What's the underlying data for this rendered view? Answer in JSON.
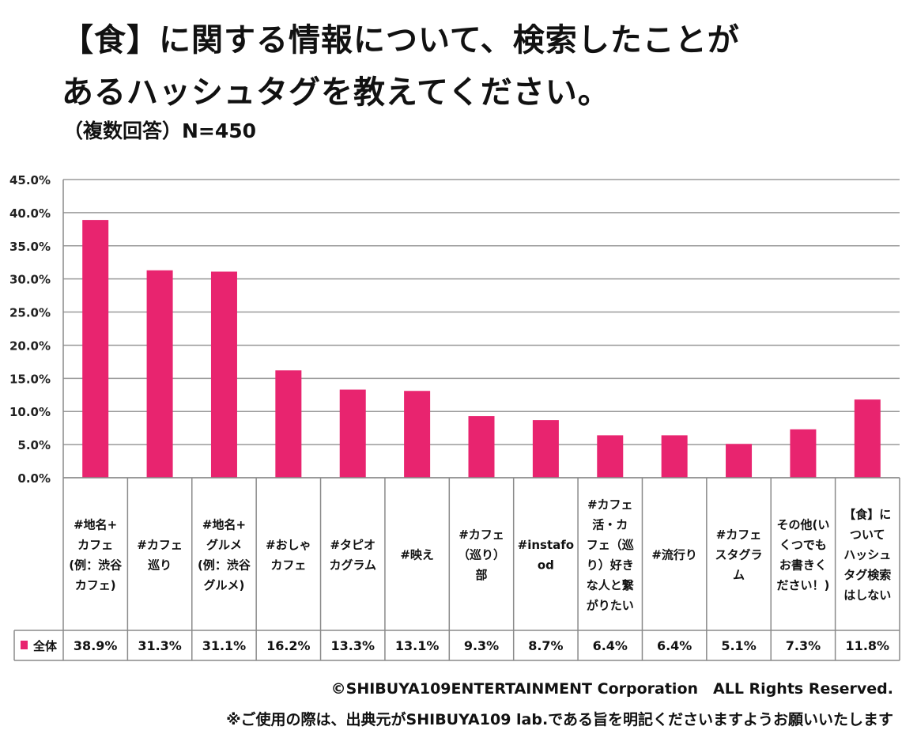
{
  "title": {
    "line1": "【食】に関する情報について、検索したことが",
    "line2": "あるハッシュタグを教えてください。",
    "line3": "（複数回答）N=450"
  },
  "footer": {
    "copyright": "©SHIBUYA109ENTERTAINMENT Corporation　ALL Rights Reserved.",
    "note": "※ご使用の際は、出典元がSHIBUYA109 lab.である旨を明記くださいますようお願いいたします"
  },
  "colors": {
    "bar": "#e8246f",
    "grid": "#9a9a9a",
    "border": "#8a8a8a"
  },
  "chart_data": {
    "type": "bar",
    "categories": [
      [
        "#地名+",
        "カフェ",
        "(例：渋谷",
        "カフェ)"
      ],
      [
        "#カフェ",
        "巡り"
      ],
      [
        "#地名+",
        "グルメ",
        "(例：渋谷",
        "グルメ)"
      ],
      [
        "#おしゃ",
        "カフェ"
      ],
      [
        "#タピオ",
        "カグラム"
      ],
      [
        "#映え"
      ],
      [
        "#カフェ",
        "（巡り）",
        "部"
      ],
      [
        "#instafo",
        "od"
      ],
      [
        "#カフェ",
        "活・カ",
        "フェ（巡",
        "り）好き",
        "な人と繋",
        "がりたい"
      ],
      [
        "#流行り"
      ],
      [
        "#カフェ",
        "スタグラ",
        "ム"
      ],
      [
        "その他(い",
        "くつでも",
        "お書きく",
        "ださい！)"
      ],
      [
        "【食】に",
        "ついて",
        "ハッシュ",
        "タグ検索",
        "はしない"
      ]
    ],
    "series": [
      {
        "name": "全体",
        "values": [
          38.9,
          31.3,
          31.1,
          16.2,
          13.3,
          13.1,
          9.3,
          8.7,
          6.4,
          6.4,
          5.1,
          7.3,
          11.8
        ]
      }
    ],
    "value_labels": [
      "38.9%",
      "31.3%",
      "31.1%",
      "16.2%",
      "13.3%",
      "13.1%",
      "9.3%",
      "8.7%",
      "6.4%",
      "6.4%",
      "5.1%",
      "7.3%",
      "11.8%"
    ],
    "yticks": [
      "0.0%",
      "5.0%",
      "10.0%",
      "15.0%",
      "20.0%",
      "25.0%",
      "30.0%",
      "35.0%",
      "40.0%",
      "45.0%"
    ],
    "ylim": [
      0,
      45
    ],
    "ystep": 5,
    "grid": true,
    "legend": "data-table-left"
  }
}
